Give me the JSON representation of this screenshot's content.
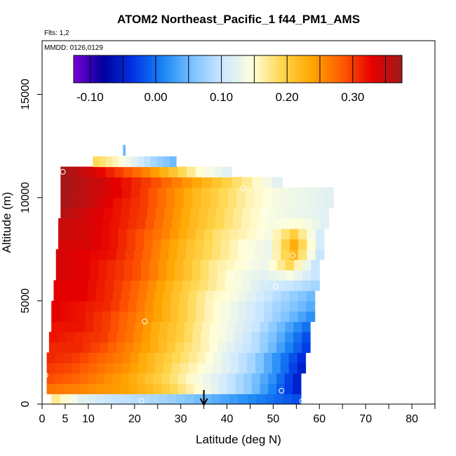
{
  "chart_data": {
    "type": "heatmap",
    "title": "ATOM2 Northeast_Pacific_1 f44_PM1_AMS",
    "annotations": {
      "flights": "Flts: 1,2",
      "dates": "MMDD: 0126,0129"
    },
    "xlabel": "Latitude (deg N)",
    "ylabel": "Altitude (m)",
    "xlim": [
      0,
      85
    ],
    "ylim": [
      0,
      17600
    ],
    "x_ticks": [
      0,
      5,
      10,
      20,
      30,
      40,
      50,
      60,
      70,
      80
    ],
    "x_minor_ticks": [
      15,
      25,
      35,
      45,
      55,
      65,
      75,
      85
    ],
    "y_ticks": [
      0,
      5000,
      10000,
      15000
    ],
    "colorbar": {
      "vmin": -0.125,
      "vmax": 0.375,
      "ticks": [
        -0.1,
        0.0,
        0.1,
        0.2,
        0.3
      ],
      "tick_labels": [
        "-0.10",
        "0.00",
        "0.10",
        "0.20",
        "0.30"
      ],
      "colors": [
        "#7a00d6",
        "#00009e",
        "#0035e5",
        "#1a86f5",
        "#7cc3ff",
        "#cde8ff",
        "#ffffdc",
        "#ffd54a",
        "#ffa500",
        "#ff5b00",
        "#e60000",
        "#a01a1a"
      ]
    },
    "layers": [
      {
        "alt": 250,
        "lat_min": 2,
        "lat_max": 56,
        "values": [
          0.17,
          0.12,
          0.1,
          0.09,
          0.08,
          0.06,
          0.04,
          0.02,
          0.0,
          -0.02
        ]
      },
      {
        "alt": 750,
        "lat_min": 1,
        "lat_max": 56,
        "values": [
          0.27,
          0.26,
          0.25,
          0.24,
          0.22,
          0.19,
          0.15,
          0.11,
          0.07,
          0.01,
          -0.05
        ]
      },
      {
        "alt": 1250,
        "lat_min": 1,
        "lat_max": 56,
        "values": [
          0.29,
          0.28,
          0.26,
          0.24,
          0.21,
          0.18,
          0.14,
          0.11,
          0.07,
          0.02,
          -0.05
        ]
      },
      {
        "alt": 1750,
        "lat_min": 1,
        "lat_max": 57,
        "values": [
          0.3,
          0.29,
          0.27,
          0.25,
          0.22,
          0.18,
          0.15,
          0.12,
          0.08,
          0.02,
          -0.05
        ]
      },
      {
        "alt": 2250,
        "lat_min": 1,
        "lat_max": 57,
        "values": [
          0.31,
          0.3,
          0.28,
          0.26,
          0.22,
          0.19,
          0.16,
          0.12,
          0.08,
          0.02,
          -0.04
        ]
      },
      {
        "alt": 2750,
        "lat_min": 1.5,
        "lat_max": 58,
        "values": [
          0.31,
          0.31,
          0.29,
          0.26,
          0.23,
          0.19,
          0.16,
          0.12,
          0.09,
          0.03,
          -0.03
        ]
      },
      {
        "alt": 3250,
        "lat_min": 1.5,
        "lat_max": 58,
        "values": [
          0.32,
          0.31,
          0.3,
          0.27,
          0.23,
          0.2,
          0.16,
          0.13,
          0.09,
          0.04,
          -0.02
        ]
      },
      {
        "alt": 3750,
        "lat_min": 2,
        "lat_max": 58,
        "values": [
          0.32,
          0.32,
          0.3,
          0.27,
          0.23,
          0.2,
          0.16,
          0.13,
          0.1,
          0.05,
          0.0
        ]
      },
      {
        "alt": 4250,
        "lat_min": 2,
        "lat_max": 59,
        "values": [
          0.33,
          0.32,
          0.3,
          0.27,
          0.24,
          0.2,
          0.16,
          0.13,
          0.1,
          0.06,
          0.02
        ]
      },
      {
        "alt": 4750,
        "lat_min": 2,
        "lat_max": 59,
        "values": [
          0.33,
          0.32,
          0.31,
          0.28,
          0.24,
          0.2,
          0.16,
          0.13,
          0.1,
          0.07,
          0.04
        ]
      },
      {
        "alt": 5250,
        "lat_min": 2.5,
        "lat_max": 59,
        "values": [
          0.33,
          0.33,
          0.31,
          0.28,
          0.24,
          0.2,
          0.16,
          0.14,
          0.11,
          0.08,
          0.05
        ]
      },
      {
        "alt": 5750,
        "lat_min": 2.5,
        "lat_max": 60,
        "values": [
          0.33,
          0.33,
          0.31,
          0.28,
          0.24,
          0.2,
          0.17,
          0.14,
          0.11,
          0.1,
          0.08
        ]
      },
      {
        "alt": 6250,
        "lat_min": 3,
        "lat_max": 60,
        "values": [
          0.34,
          0.33,
          0.31,
          0.29,
          0.25,
          0.21,
          0.17,
          0.14,
          0.12,
          0.14,
          0.1
        ]
      },
      {
        "alt": 6750,
        "lat_min": 3,
        "lat_max": 60,
        "values": [
          0.34,
          0.33,
          0.31,
          0.29,
          0.25,
          0.21,
          0.17,
          0.15,
          0.13,
          0.19,
          0.1
        ]
      },
      {
        "alt": 7250,
        "lat_min": 3,
        "lat_max": 61,
        "values": [
          0.34,
          0.33,
          0.32,
          0.29,
          0.25,
          0.21,
          0.18,
          0.15,
          0.13,
          0.22,
          0.1
        ]
      },
      {
        "alt": 7750,
        "lat_min": 3.5,
        "lat_max": 61,
        "values": [
          0.34,
          0.34,
          0.32,
          0.29,
          0.25,
          0.21,
          0.18,
          0.15,
          0.13,
          0.23,
          0.11
        ]
      },
      {
        "alt": 8250,
        "lat_min": 3.5,
        "lat_max": 61,
        "values": [
          0.35,
          0.34,
          0.32,
          0.29,
          0.26,
          0.22,
          0.18,
          0.16,
          0.14,
          0.2,
          0.11
        ]
      },
      {
        "alt": 8750,
        "lat_min": 3.5,
        "lat_max": 62,
        "values": [
          0.35,
          0.34,
          0.32,
          0.3,
          0.26,
          0.22,
          0.19,
          0.16,
          0.14,
          0.15,
          0.12
        ]
      },
      {
        "alt": 9250,
        "lat_min": 4,
        "lat_max": 62,
        "values": [
          0.36,
          0.34,
          0.32,
          0.3,
          0.26,
          0.22,
          0.19,
          0.16,
          0.14,
          0.13,
          0.12
        ]
      },
      {
        "alt": 9750,
        "lat_min": 4,
        "lat_max": 63,
        "values": [
          0.37,
          0.35,
          0.32,
          0.3,
          0.26,
          0.22,
          0.19,
          0.16,
          0.14,
          0.13,
          0.12
        ]
      },
      {
        "alt": 10250,
        "lat_min": 4,
        "lat_max": 63,
        "values": [
          0.37,
          0.35,
          0.33,
          0.3,
          0.26,
          0.22,
          0.19,
          0.16,
          0.14,
          0.13,
          0.12
        ]
      },
      {
        "alt": 10750,
        "lat_min": 4,
        "lat_max": 52,
        "values": [
          0.37,
          0.35,
          0.32,
          0.29,
          0.25,
          0.21,
          0.17,
          0.12
        ]
      },
      {
        "alt": 11250,
        "lat_min": 4,
        "lat_max": 41,
        "values": [
          0.37,
          0.34,
          0.3,
          0.26,
          0.21,
          0.15,
          0.12
        ]
      },
      {
        "alt": 11750,
        "lat_min": 11,
        "lat_max": 29,
        "values": [
          0.19,
          0.16,
          0.12,
          0.08,
          0.05
        ]
      },
      {
        "alt": 12300,
        "lat_min": 17.5,
        "lat_max": 18,
        "values": [
          0.05
        ]
      }
    ],
    "sample_markers": [
      {
        "lat": 0.7,
        "alt": 1400
      },
      {
        "lat": 4.5,
        "alt": 11250
      },
      {
        "lat": 6.8,
        "alt": 150
      },
      {
        "lat": 21.5,
        "alt": 150
      },
      {
        "lat": 22.2,
        "alt": 4000
      },
      {
        "lat": 40.8,
        "alt": 6100
      },
      {
        "lat": 43.5,
        "alt": 10450
      },
      {
        "lat": 48.2,
        "alt": 9150
      },
      {
        "lat": 50.5,
        "alt": 5700
      },
      {
        "lat": 51.8,
        "alt": 650
      },
      {
        "lat": 54.2,
        "alt": 7200
      },
      {
        "lat": 56.3,
        "alt": 150
      },
      {
        "lat": 63.8,
        "alt": 10300
      }
    ],
    "arrow_lat": 35
  }
}
